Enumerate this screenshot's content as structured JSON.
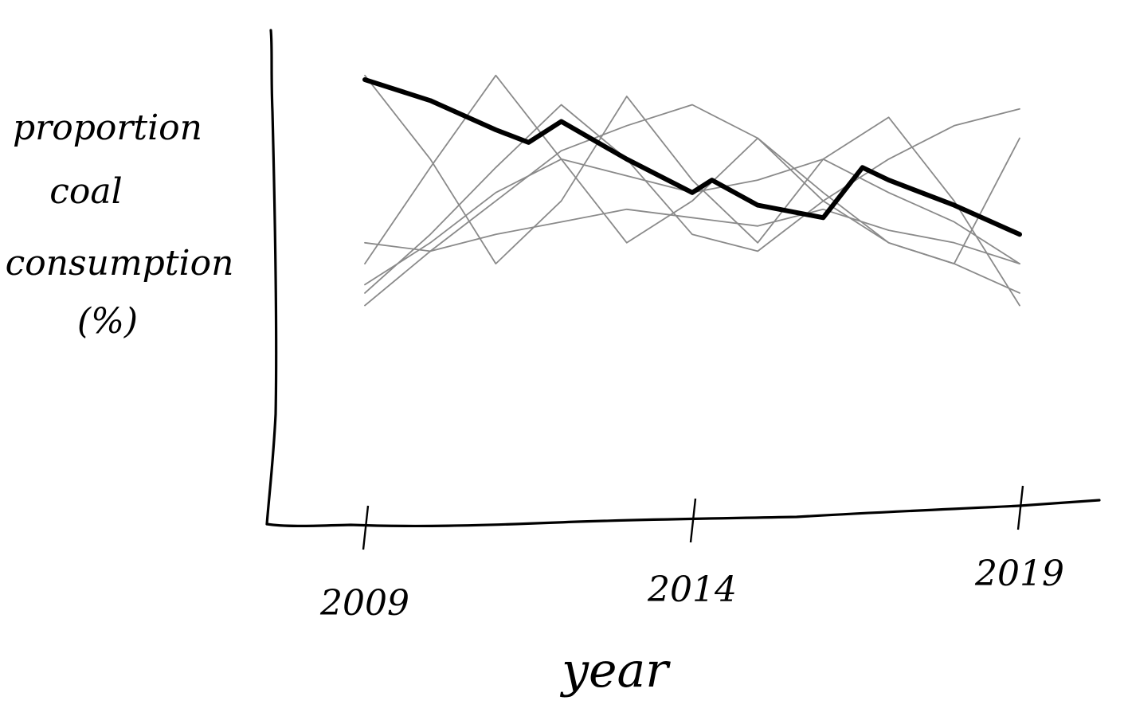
{
  "chart_data": {
    "type": "line",
    "xlabel": "year",
    "ylabel_lines": [
      "proportion",
      "coal",
      "consumption",
      "(%)"
    ],
    "x_ticks": [
      "2009",
      "2014",
      "2019"
    ],
    "x": [
      2009,
      2010,
      2011,
      2011.5,
      2012,
      2013,
      2014,
      2014.3,
      2015,
      2016,
      2016.6,
      2017,
      2018,
      2019
    ],
    "highlight_series": {
      "values": [
        99,
        94,
        87,
        84,
        89,
        80,
        72,
        75,
        69,
        66,
        78,
        75,
        69,
        62
      ]
    },
    "context_series": [
      {
        "x": [
          2009,
          2010,
          2011,
          2012,
          2013,
          2014,
          2015,
          2016,
          2017,
          2018,
          2019
        ],
        "values": [
          60,
          58,
          62,
          65,
          68,
          66,
          64,
          68,
          63,
          60,
          55
        ]
      },
      {
        "x": [
          2009,
          2010,
          2011,
          2012,
          2013,
          2014,
          2015,
          2016,
          2017,
          2018,
          2019
        ],
        "values": [
          55,
          78,
          100,
          80,
          60,
          70,
          85,
          72,
          60,
          55,
          85
        ]
      },
      {
        "x": [
          2009,
          2010,
          2011,
          2012,
          2013,
          2014,
          2015,
          2016,
          2017,
          2018,
          2019
        ],
        "values": [
          100,
          80,
          55,
          70,
          95,
          75,
          60,
          80,
          90,
          70,
          45
        ]
      },
      {
        "x": [
          2009,
          2010,
          2011,
          2012,
          2013,
          2014,
          2015,
          2016,
          2017,
          2018,
          2019
        ],
        "values": [
          50,
          60,
          72,
          80,
          76,
          72,
          75,
          80,
          72,
          65,
          55
        ]
      },
      {
        "x": [
          2009,
          2010,
          2011,
          2012,
          2013,
          2014,
          2015,
          2016,
          2017,
          2018,
          2019
        ],
        "values": [
          45,
          58,
          70,
          82,
          88,
          93,
          85,
          70,
          60,
          55,
          48
        ]
      },
      {
        "x": [
          2009,
          2010,
          2011,
          2012,
          2013,
          2014,
          2015,
          2016,
          2017,
          2018,
          2019
        ],
        "values": [
          48,
          62,
          78,
          93,
          80,
          62,
          58,
          70,
          80,
          88,
          92
        ]
      }
    ],
    "xlim": [
      2008,
      2020
    ],
    "ylim": [
      0,
      110
    ],
    "grid": false,
    "legend": "none"
  }
}
